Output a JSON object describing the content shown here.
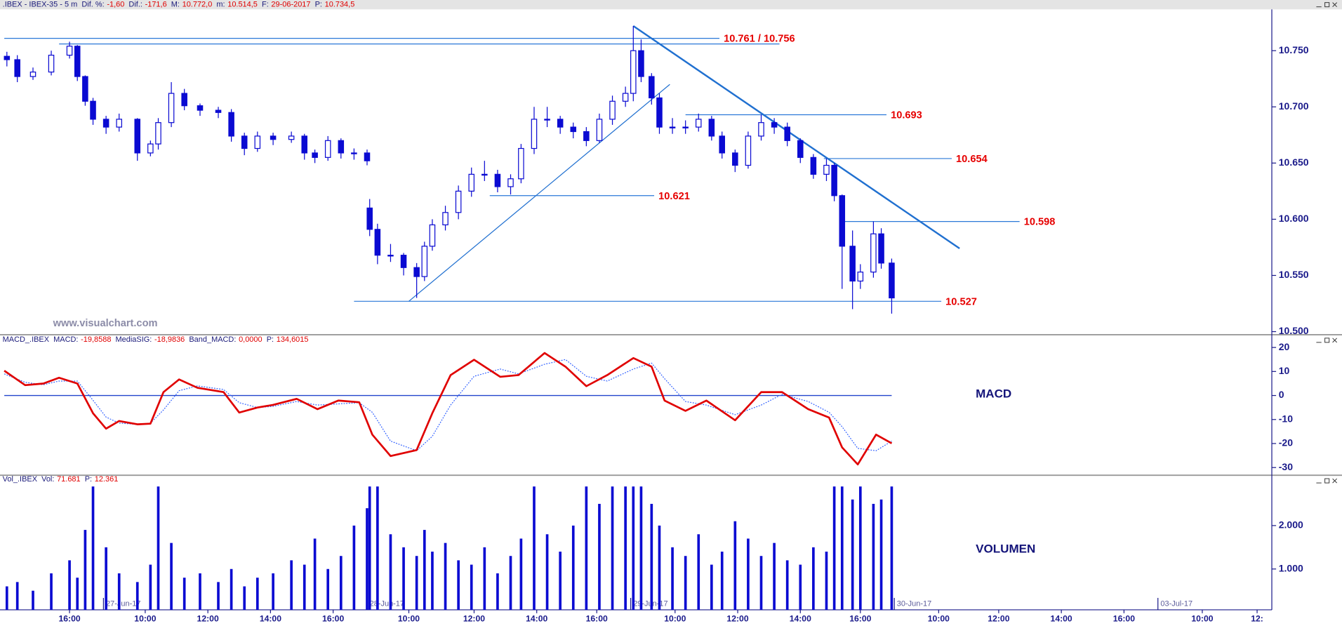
{
  "chart_data": [
    {
      "type": "candlestick",
      "title": ".IBEX - IBEX-35 -  5 m",
      "items": [
        {
          "label": "Dif. %:",
          "value": "-1,60"
        },
        {
          "label": "Dif.:",
          "value": "-171,6"
        },
        {
          "label": "M:",
          "value": "10.772,0"
        },
        {
          "label": "m:",
          "value": "10.514,5"
        },
        {
          "label": "F:",
          "value": "29-06-2017"
        },
        {
          "label": "P:",
          "value": "10.734,5"
        }
      ],
      "watermark": "www.visualchart.com",
      "color": "#0a0ad2",
      "xlim": [
        0,
        484
      ],
      "ylim": [
        10498,
        10786
      ],
      "yticks": [
        {
          "value": 10500,
          "label": "10.500"
        },
        {
          "value": 10550,
          "label": "10.550"
        },
        {
          "value": 10600,
          "label": "10.600"
        },
        {
          "value": 10650,
          "label": "10.650"
        },
        {
          "value": 10700,
          "label": "10.700"
        },
        {
          "value": 10750,
          "label": "10.750"
        }
      ],
      "x": [
        1,
        5,
        11,
        18,
        25,
        28,
        31,
        34,
        39,
        44,
        51,
        56,
        59,
        64,
        69,
        75,
        82,
        87,
        92,
        97,
        103,
        110,
        115,
        119,
        124,
        129,
        134,
        139,
        140,
        143,
        148,
        153,
        158,
        161,
        164,
        169,
        174,
        179,
        184,
        189,
        194,
        198,
        203,
        208,
        213,
        218,
        223,
        228,
        233,
        238,
        241,
        244,
        248,
        251,
        256,
        261,
        266,
        271,
        275,
        280,
        285,
        290,
        295,
        300,
        305,
        310,
        315,
        318,
        321,
        325,
        328,
        333,
        336,
        340
      ],
      "open": [
        10745,
        10742,
        10727,
        10731,
        10746,
        10754,
        10727,
        10705,
        10689,
        10682,
        10689,
        10659,
        10667,
        10686,
        10712,
        10701,
        10697,
        10695,
        10674,
        10663,
        10674,
        10671,
        10674,
        10659,
        10655,
        10670,
        10659,
        10659,
        10610,
        10591,
        10568,
        10568,
        10557,
        10549,
        10576,
        10595,
        10606,
        10625,
        10640,
        10640,
        10629,
        10636,
        10663,
        10689,
        10689,
        10682,
        10678,
        10670,
        10689,
        10705,
        10712,
        10750,
        10727,
        10708,
        10682,
        10682,
        10682,
        10689,
        10674,
        10659,
        10648,
        10674,
        10686,
        10682,
        10670,
        10655,
        10640,
        10648,
        10621,
        10576,
        10545,
        10553,
        10587,
        10561
      ],
      "high": [
        10749,
        10746,
        10735,
        10750,
        10758,
        10755,
        10728,
        10708,
        10692,
        10694,
        10690,
        10670,
        10690,
        10722,
        10716,
        10703,
        10700,
        10698,
        10677,
        10678,
        10677,
        10678,
        10676,
        10662,
        10674,
        10672,
        10663,
        10662,
        10618,
        10596,
        10578,
        10570,
        10561,
        10580,
        10600,
        10612,
        10630,
        10646,
        10652,
        10644,
        10640,
        10667,
        10700,
        10700,
        10692,
        10686,
        10682,
        10694,
        10710,
        10718,
        10772,
        10760,
        10730,
        10712,
        10690,
        10688,
        10694,
        10692,
        10678,
        10662,
        10678,
        10693,
        10690,
        10686,
        10672,
        10658,
        10654,
        10650,
        10622,
        10590,
        10560,
        10598,
        10592,
        10565
      ],
      "low": [
        10736,
        10722,
        10724,
        10728,
        10743,
        10723,
        10701,
        10684,
        10676,
        10678,
        10652,
        10656,
        10662,
        10682,
        10697,
        10692,
        10690,
        10669,
        10657,
        10660,
        10666,
        10668,
        10653,
        10650,
        10652,
        10654,
        10653,
        10648,
        10585,
        10560,
        10562,
        10550,
        10530,
        10545,
        10572,
        10590,
        10600,
        10620,
        10634,
        10624,
        10622,
        10632,
        10658,
        10682,
        10676,
        10672,
        10665,
        10668,
        10684,
        10700,
        10705,
        10722,
        10702,
        10676,
        10676,
        10676,
        10678,
        10670,
        10654,
        10642,
        10645,
        10670,
        10676,
        10665,
        10650,
        10636,
        10634,
        10616,
        10538,
        10520,
        10538,
        10548,
        10556,
        10516
      ],
      "close": [
        10742,
        10727,
        10731,
        10746,
        10754,
        10727,
        10705,
        10689,
        10682,
        10689,
        10659,
        10667,
        10686,
        10712,
        10701,
        10697,
        10695,
        10674,
        10663,
        10674,
        10671,
        10674,
        10659,
        10655,
        10670,
        10659,
        10659,
        10652,
        10591,
        10568,
        10568,
        10557,
        10549,
        10576,
        10595,
        10606,
        10625,
        10640,
        10640,
        10629,
        10636,
        10663,
        10689,
        10689,
        10682,
        10678,
        10670,
        10689,
        10705,
        10712,
        10750,
        10727,
        10708,
        10682,
        10682,
        10682,
        10689,
        10674,
        10659,
        10648,
        10674,
        10686,
        10682,
        10670,
        10655,
        10640,
        10648,
        10621,
        10576,
        10545,
        10553,
        10587,
        10561,
        10530
      ],
      "levels": [
        {
          "value": 10761,
          "x": [
            0,
            274
          ],
          "label": "10.761 / 10.756"
        },
        {
          "value": 10756,
          "x": [
            21,
            297
          ]
        },
        {
          "value": 10693,
          "x": [
            261,
            338
          ],
          "label": "10.693"
        },
        {
          "value": 10654,
          "x": [
            314,
            363
          ],
          "label": "10.654"
        },
        {
          "value": 10621,
          "x": [
            186,
            249
          ],
          "label": "10.621"
        },
        {
          "value": 10598,
          "x": [
            321,
            389
          ],
          "label": "10.598"
        },
        {
          "value": 10527,
          "x": [
            134,
            359
          ],
          "label": "10.527"
        }
      ],
      "level_color": "#2a78d8",
      "trendlines": [
        {
          "x": [
            241,
            366
          ],
          "values": [
            10772,
            10574
          ],
          "width": 2
        },
        {
          "x": [
            155,
            255
          ],
          "values": [
            10527,
            10720
          ],
          "width": 1
        }
      ]
    },
    {
      "type": "line",
      "title": "MACD",
      "header": "MACD_.IBEX",
      "items": [
        {
          "label": "MACD:",
          "value": "-19,8588"
        },
        {
          "label": "MediaSIG:",
          "value": "-18,9836"
        },
        {
          "label": "Band_MACD:",
          "value": "0,0000"
        },
        {
          "label": "P:",
          "value": "134,6015"
        }
      ],
      "xlim": [
        0,
        484
      ],
      "ylim": [
        -32.5,
        24.6
      ],
      "yticks": [
        -30,
        -20,
        -10,
        0,
        10,
        20
      ],
      "x": [
        0,
        8,
        15,
        21,
        28,
        34,
        39,
        44,
        51,
        56,
        61,
        67,
        74,
        84,
        90,
        97,
        103,
        112,
        120,
        128,
        136,
        141,
        148,
        158,
        164,
        171,
        180,
        190,
        197,
        207,
        215,
        223,
        231,
        241,
        248,
        253,
        261,
        269,
        280,
        290,
        298,
        308,
        316,
        321,
        327,
        334,
        340
      ],
      "series": [
        {
          "color": "#e00000",
          "values": [
            10.3,
            4.3,
            5,
            7.4,
            5,
            -7.4,
            -13.8,
            -10.6,
            -12,
            -11.7,
            1.4,
            6.7,
            3.2,
            1.4,
            -7.1,
            -5,
            -3.9,
            -1.4,
            -5.7,
            -2.1,
            -2.8,
            -16.3,
            -25.2,
            -22.7,
            -7.4,
            8.5,
            14.9,
            7.8,
            8.5,
            17.7,
            12,
            3.9,
            8.5,
            15.6,
            12,
            -2.1,
            -6.4,
            -2.1,
            -10.3,
            1.4,
            1.4,
            -5.7,
            -9.2,
            -21.6,
            -28.7,
            -16.3,
            -19.9
          ]
        },
        {
          "color": "#3060ff",
          "dashed": true,
          "values": [
            9,
            5.5,
            4.5,
            6,
            6,
            -2,
            -9,
            -11.5,
            -12,
            -11.5,
            -6,
            2,
            4,
            2.5,
            -3,
            -5,
            -4.5,
            -2.5,
            -4,
            -3.5,
            -3,
            -7,
            -19,
            -23,
            -17,
            -4,
            8,
            11,
            9,
            13,
            15,
            8,
            6,
            11,
            13.5,
            7,
            -2.5,
            -4,
            -8,
            -4,
            0.5,
            -2.5,
            -7,
            -13,
            -22,
            -23,
            -19
          ]
        }
      ],
      "band": {
        "value": 0,
        "x": [
          0,
          340
        ],
        "color": "#2244cc"
      }
    },
    {
      "type": "bar",
      "title": "VOLUMEN",
      "header": "Vol_.IBEX",
      "items": [
        {
          "label": "Vol:",
          "value": "71.681"
        },
        {
          "label": "P:",
          "value": "12.361"
        }
      ],
      "color": "#0a0ad2",
      "xlim": [
        0,
        484
      ],
      "ylim": [
        60,
        3100
      ],
      "yticks": [
        {
          "value": 1000,
          "label": "1.000"
        },
        {
          "value": 2000,
          "label": "2.000"
        }
      ],
      "x": [
        1,
        5,
        11,
        18,
        25,
        28,
        31,
        34,
        39,
        44,
        51,
        56,
        59,
        64,
        69,
        75,
        82,
        87,
        92,
        97,
        103,
        110,
        115,
        119,
        124,
        129,
        134,
        139,
        140,
        143,
        148,
        153,
        158,
        161,
        164,
        169,
        174,
        179,
        184,
        189,
        194,
        198,
        203,
        208,
        213,
        218,
        223,
        228,
        233,
        238,
        241,
        244,
        248,
        251,
        256,
        261,
        266,
        271,
        275,
        280,
        285,
        290,
        295,
        300,
        305,
        310,
        315,
        318,
        321,
        325,
        328,
        333,
        336,
        340
      ],
      "values": [
        600,
        700,
        500,
        900,
        1200,
        800,
        1900,
        2900,
        1500,
        900,
        700,
        1100,
        2900,
        1600,
        800,
        900,
        700,
        1000,
        600,
        800,
        900,
        1200,
        1100,
        1700,
        1000,
        1300,
        2000,
        2400,
        2900,
        2900,
        1800,
        1500,
        1300,
        1900,
        1400,
        1600,
        1200,
        1100,
        1500,
        900,
        1300,
        1700,
        2900,
        1800,
        1400,
        2000,
        2900,
        2500,
        2900,
        2900,
        2900,
        2900,
        2500,
        2000,
        1500,
        1300,
        1800,
        1100,
        1400,
        2100,
        1700,
        1300,
        1600,
        1200,
        1100,
        1500,
        1400,
        2900,
        2900,
        2600,
        2900,
        2500,
        2600,
        2900
      ],
      "xticks": [
        {
          "value": 25,
          "label": "16:00"
        },
        {
          "value": 54,
          "label": "10:00"
        },
        {
          "value": 78,
          "label": "12:00"
        },
        {
          "value": 102,
          "label": "14:00"
        },
        {
          "value": 126,
          "label": "16:00"
        },
        {
          "value": 155,
          "label": "10:00"
        },
        {
          "value": 180,
          "label": "12:00"
        },
        {
          "value": 204,
          "label": "14:00"
        },
        {
          "value": 227,
          "label": "16:00"
        },
        {
          "value": 257,
          "label": "10:00"
        },
        {
          "value": 281,
          "label": "12:00"
        },
        {
          "value": 305,
          "label": "14:00"
        },
        {
          "value": 328,
          "label": "16:00"
        },
        {
          "value": 358,
          "label": "10:00"
        },
        {
          "value": 381,
          "label": "12:00"
        },
        {
          "value": 405,
          "label": "14:00"
        },
        {
          "value": 429,
          "label": "16:00"
        },
        {
          "value": 459,
          "label": "10:00"
        },
        {
          "value": 480,
          "label": "12:"
        }
      ],
      "date_ticks": [
        {
          "value": 38,
          "label": "27-Jun-17"
        },
        {
          "value": 139,
          "label": "28-Jun-17"
        },
        {
          "value": 240,
          "label": "29-Jun-17"
        },
        {
          "value": 341,
          "label": "30-Jun-17"
        },
        {
          "value": 442,
          "label": "03-Jul-17"
        }
      ]
    }
  ]
}
